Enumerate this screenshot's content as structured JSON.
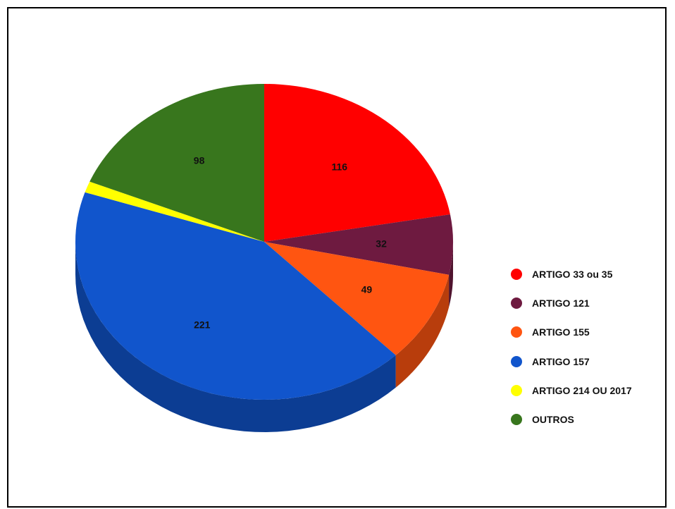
{
  "chart_data": {
    "type": "pie",
    "title": "",
    "style": "3d",
    "legend_position": "right",
    "categories": [
      "ARTIGO 33 ou 35",
      "ARTIGO 121",
      "ARTIGO 155",
      "ARTIGO 157",
      "ARTIGO 214 OU 2017",
      "OUTROS"
    ],
    "values": [
      116,
      32,
      49,
      221,
      6,
      98
    ],
    "data_labels": [
      "116",
      "32",
      "49",
      "221",
      "",
      "98"
    ],
    "colors": [
      "#ff0000",
      "#6e1a40",
      "#ff5511",
      "#1155cc",
      "#ffff00",
      "#38761d"
    ]
  }
}
